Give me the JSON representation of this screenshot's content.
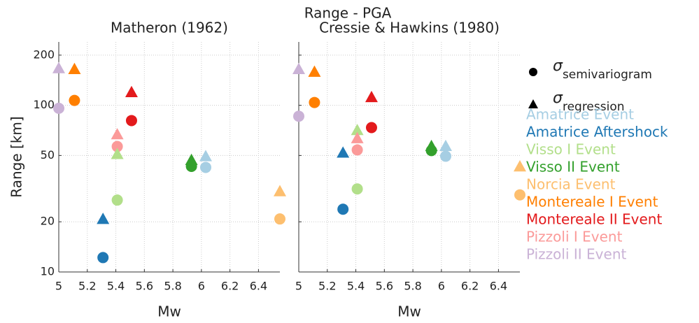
{
  "title": "Range - PGA",
  "legend": {
    "markers": [
      {
        "symbol": "σ",
        "name": "semivariogram",
        "shape": "circle"
      },
      {
        "symbol": "σ",
        "name": "regression",
        "shape": "triangle"
      }
    ],
    "events": [
      {
        "name": "Amatrice Event",
        "color": "#a6cee3"
      },
      {
        "name": "Amatrice Aftershock",
        "color": "#1f78b4"
      },
      {
        "name": "Visso I Event",
        "color": "#b2df8a"
      },
      {
        "name": "Visso II Event",
        "color": "#33a02c"
      },
      {
        "name": "Norcia Event",
        "color": "#fdbf6f"
      },
      {
        "name": "Montereale I Event",
        "color": "#ff7f00"
      },
      {
        "name": "Montereale II Event",
        "color": "#e31a1c"
      },
      {
        "name": "Pizzoli I Event",
        "color": "#fb9a99"
      },
      {
        "name": "Pizzoli II Event",
        "color": "#cab2d6"
      }
    ]
  },
  "chart_data": [
    {
      "type": "scatter",
      "title": "Matheron  (1962)",
      "xlabel": "Mw",
      "ylabel": "Range [km]",
      "x": [
        6.03,
        5.31,
        5.41,
        5.93,
        6.55,
        5.11,
        5.51,
        5.41,
        5.0
      ],
      "series": [
        {
          "name": "semivariogram",
          "marker": "circle",
          "values": [
            42.4,
            12.2,
            27,
            43,
            20.8,
            107,
            81,
            56.6,
            96
          ]
        },
        {
          "name": "regression",
          "marker": "triangle",
          "values": [
            49.5,
            20.8,
            51,
            47,
            30.5,
            165,
            120,
            67,
            167
          ]
        }
      ],
      "xlim": [
        5,
        6.55
      ],
      "xticks": [
        5,
        5.2,
        5.4,
        5.6,
        5.8,
        6,
        6.2,
        6.4
      ],
      "ylim": [
        10,
        240
      ],
      "yticks": [
        10,
        20,
        50,
        100,
        200
      ],
      "ytick_labels": true,
      "log_y": true,
      "grid": true
    },
    {
      "type": "scatter",
      "title": "Cressie & Hawkins (1980)",
      "xlabel": "Mw",
      "x": [
        6.03,
        5.31,
        5.41,
        5.93,
        6.55,
        5.11,
        5.51,
        5.41,
        5.0
      ],
      "series": [
        {
          "name": "semivariogram",
          "marker": "circle",
          "values": [
            49.5,
            23.8,
            31.5,
            53.5,
            29,
            104,
            73.5,
            54,
            86
          ]
        },
        {
          "name": "regression",
          "marker": "triangle",
          "values": [
            57,
            52,
            71,
            57,
            43,
            159,
            112,
            63.5,
            165
          ]
        }
      ],
      "xlim": [
        5,
        6.55
      ],
      "xticks": [
        5,
        5.2,
        5.4,
        5.6,
        5.8,
        6,
        6.2,
        6.4
      ],
      "ylim": [
        10,
        240
      ],
      "yticks": [
        10,
        20,
        50,
        100,
        200
      ],
      "ytick_labels": false,
      "log_y": true,
      "grid": true
    }
  ]
}
